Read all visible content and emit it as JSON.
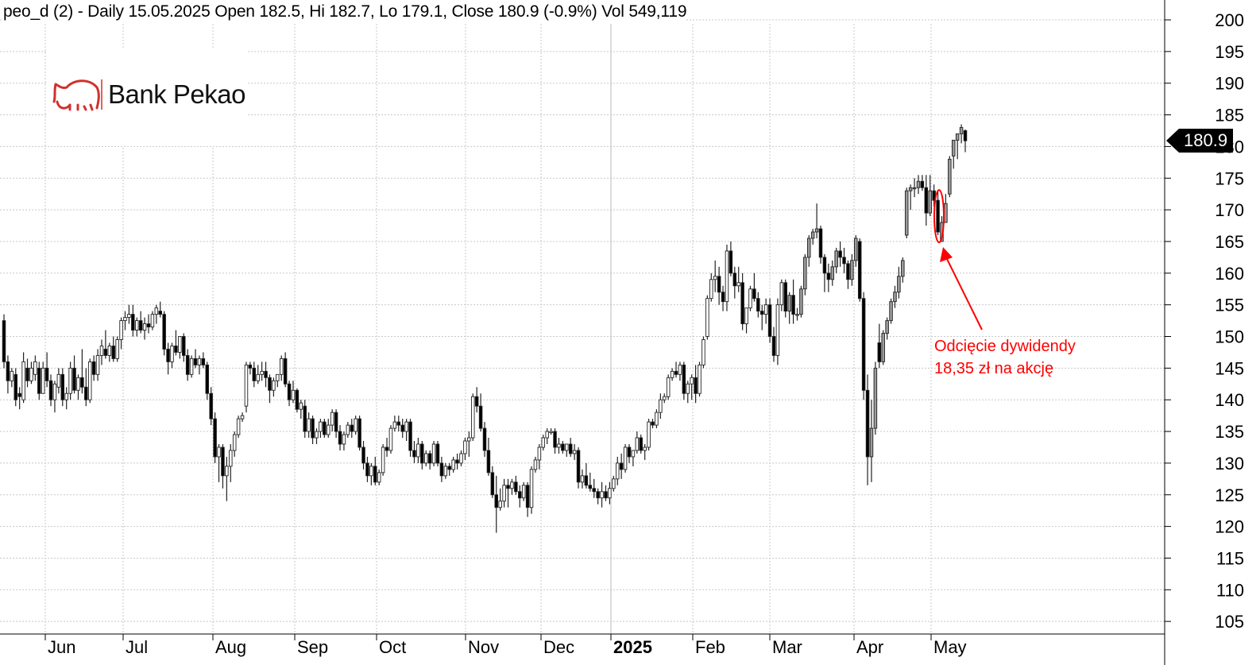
{
  "header": {
    "title": "peo_d (2) - Daily 15.05.2025 Open 182.5, Hi 182.7, Lo 179.1, Close 180.9 (-0.9%) Vol 549,119"
  },
  "logo": {
    "text": "Bank Pekao",
    "color": "#d0312d"
  },
  "annotation": {
    "line1": "Odcięcie dywidendy",
    "line2": "18,35 zł na akcję",
    "color": "#ff0000"
  },
  "last_price": {
    "label": "180.9"
  },
  "chart_data": {
    "type": "candlestick",
    "ticker": "peo_d (2)",
    "interval": "Daily",
    "ylim": [
      102,
      202
    ],
    "y_ticks": [
      105,
      110,
      115,
      120,
      125,
      130,
      135,
      140,
      145,
      150,
      155,
      160,
      165,
      170,
      175,
      180,
      185,
      190,
      195,
      200
    ],
    "x_tick_labels": [
      "Jun",
      "Jul",
      "Aug",
      "Sep",
      "Oct",
      "Nov",
      "Dec",
      "2025",
      "Feb",
      "Mar",
      "Apr",
      "May"
    ],
    "grid": true,
    "colors": {
      "up": "#ffffff",
      "down": "#000000",
      "outline": "#222222",
      "grid": "#c8c8c8"
    },
    "candles_ohlc": [
      [
        152.5,
        153.5,
        145,
        146
      ],
      [
        146,
        147,
        141,
        143
      ],
      [
        143,
        145,
        142,
        144.5
      ],
      [
        144,
        145,
        139,
        140
      ],
      [
        141,
        142,
        138.5,
        140.5
      ],
      [
        140,
        147.5,
        139.5,
        146
      ],
      [
        145,
        146.5,
        142,
        143
      ],
      [
        143,
        146,
        142.5,
        145
      ],
      [
        144,
        147,
        143,
        146
      ],
      [
        145,
        146,
        140,
        141
      ],
      [
        141,
        146,
        141,
        145
      ],
      [
        145,
        147.5,
        142,
        143
      ],
      [
        143,
        144,
        139,
        140
      ],
      [
        140,
        143,
        138,
        142.5
      ],
      [
        142,
        145,
        141,
        144
      ],
      [
        144,
        145,
        139,
        140
      ],
      [
        140,
        142,
        138.5,
        141
      ],
      [
        141,
        146,
        140,
        145
      ],
      [
        145,
        147,
        141,
        141.5
      ],
      [
        141.5,
        144,
        140,
        143.5
      ],
      [
        143.5,
        148,
        141,
        142
      ],
      [
        142,
        145,
        139,
        140
      ],
      [
        140,
        146.5,
        139.5,
        146
      ],
      [
        146,
        147,
        143,
        144
      ],
      [
        144,
        148,
        143,
        147
      ],
      [
        147,
        149.5,
        145.5,
        148.5
      ],
      [
        148,
        151,
        146.5,
        147
      ],
      [
        147,
        149,
        146,
        148.5
      ],
      [
        148.5,
        150,
        146,
        146.5
      ],
      [
        146.5,
        150,
        146,
        149.5
      ],
      [
        149.5,
        153,
        148,
        152.5
      ],
      [
        152.5,
        154,
        151,
        153
      ],
      [
        153,
        155,
        152,
        153.5
      ],
      [
        153.5,
        155,
        150,
        151
      ],
      [
        151,
        153,
        150,
        152.5
      ],
      [
        152.5,
        154,
        150.5,
        151
      ],
      [
        151,
        153,
        149.5,
        152
      ],
      [
        152,
        153.5,
        150.5,
        151.5
      ],
      [
        151.5,
        154,
        151,
        153.5
      ],
      [
        153.5,
        155,
        152,
        154.5
      ],
      [
        154,
        155.5,
        153,
        153.5
      ],
      [
        153.5,
        154,
        147,
        148
      ],
      [
        148,
        149,
        144,
        146
      ],
      [
        146,
        149,
        145,
        148.5
      ],
      [
        148.5,
        151,
        147,
        147.5
      ],
      [
        147.5,
        150,
        146.5,
        150
      ],
      [
        150,
        150.5,
        146,
        147
      ],
      [
        147,
        148,
        143,
        144
      ],
      [
        144,
        147,
        143.5,
        146.5
      ],
      [
        146.5,
        148,
        145,
        145.5
      ],
      [
        145.5,
        147,
        144,
        146.5
      ],
      [
        146.5,
        147.5,
        145,
        145.5
      ],
      [
        145.5,
        146,
        140,
        141
      ],
      [
        141,
        142,
        136,
        137
      ],
      [
        137,
        138,
        130,
        131
      ],
      [
        131,
        133,
        127,
        132.5
      ],
      [
        132.5,
        133,
        126,
        128
      ],
      [
        128,
        131,
        124,
        129.5
      ],
      [
        129.5,
        133,
        127,
        132
      ],
      [
        132,
        135,
        131,
        134.5
      ],
      [
        134.5,
        137.5,
        134,
        137
      ],
      [
        137,
        138,
        136.5,
        137.5
      ],
      [
        139,
        146,
        138,
        145.5
      ],
      [
        145.5,
        146,
        144,
        145
      ],
      [
        145,
        146,
        142,
        143
      ],
      [
        143,
        145.5,
        142.5,
        144
      ],
      [
        144,
        146,
        143,
        144.5
      ],
      [
        144.5,
        146,
        142,
        143.5
      ],
      [
        143.5,
        144,
        139.5,
        141.5
      ],
      [
        141.5,
        143.5,
        140.5,
        143
      ],
      [
        143,
        144,
        142,
        144
      ],
      [
        144,
        147,
        143,
        146.5
      ],
      [
        146.5,
        147.5,
        142,
        142.5
      ],
      [
        142.5,
        143,
        139,
        140
      ],
      [
        140,
        143,
        139.5,
        141.5
      ],
      [
        141.5,
        141.8,
        138,
        138.5
      ],
      [
        138.5,
        140,
        137,
        139.5
      ],
      [
        139,
        140,
        134,
        135
      ],
      [
        135,
        138,
        134,
        137
      ],
      [
        137,
        137.5,
        133,
        134
      ],
      [
        134,
        135.5,
        133,
        135
      ],
      [
        135,
        137,
        134,
        136.5
      ],
      [
        136.5,
        137,
        134,
        134.5
      ],
      [
        134.5,
        137,
        134,
        136
      ],
      [
        136,
        138.5,
        135,
        138
      ],
      [
        138,
        138.5,
        134,
        135
      ],
      [
        135,
        136,
        132,
        133
      ],
      [
        133,
        135,
        132,
        134.5
      ],
      [
        134.5,
        136.5,
        134,
        136
      ],
      [
        136,
        137,
        134,
        135
      ],
      [
        135,
        137.5,
        134.5,
        137
      ],
      [
        137,
        137.5,
        132,
        132.5
      ],
      [
        132.5,
        133.5,
        129,
        130
      ],
      [
        130,
        131,
        127,
        128
      ],
      [
        128,
        130,
        126.5,
        129.5
      ],
      [
        129.5,
        131,
        126.5,
        127
      ],
      [
        127,
        129,
        126.5,
        128.5
      ],
      [
        128.5,
        133,
        128,
        132.5
      ],
      [
        132.5,
        134,
        131,
        132
      ],
      [
        132,
        136,
        131.5,
        135.5
      ],
      [
        135.5,
        137.5,
        135,
        136.5
      ],
      [
        136.5,
        137.5,
        135,
        136
      ],
      [
        136,
        137,
        134,
        135
      ],
      [
        135,
        137,
        133.5,
        136.5
      ],
      [
        136.5,
        137,
        131,
        132
      ],
      [
        132,
        133.5,
        130,
        131
      ],
      [
        131,
        134,
        130,
        133
      ],
      [
        133,
        133.5,
        129,
        130
      ],
      [
        130,
        132,
        129.5,
        131.5
      ],
      [
        131.5,
        132,
        129,
        130
      ],
      [
        130,
        133.5,
        129.5,
        133
      ],
      [
        133,
        133.5,
        129.5,
        130
      ],
      [
        130,
        131,
        127,
        128
      ],
      [
        128,
        130,
        127.5,
        129.5
      ],
      [
        129.5,
        130,
        128,
        129
      ],
      [
        129,
        131,
        128.5,
        130.5
      ],
      [
        130.5,
        131.5,
        129,
        130
      ],
      [
        130,
        132,
        129.5,
        131.5
      ],
      [
        131.5,
        134,
        130.5,
        133.5
      ],
      [
        133.5,
        135,
        131,
        134
      ],
      [
        134,
        141,
        133.5,
        140.5
      ],
      [
        140.5,
        142,
        138,
        139
      ],
      [
        139,
        141,
        135,
        135.5
      ],
      [
        135.5,
        136.5,
        131,
        132
      ],
      [
        132,
        134,
        128,
        128.5
      ],
      [
        128.5,
        129.5,
        124.5,
        125
      ],
      [
        125,
        128,
        119,
        123
      ],
      [
        123,
        126,
        122.5,
        124
      ],
      [
        124,
        127.5,
        123,
        126.5
      ],
      [
        126.5,
        127.5,
        123,
        126
      ],
      [
        126,
        127.5,
        125,
        127
      ],
      [
        127,
        128,
        125,
        125.5
      ],
      [
        125.5,
        126.5,
        123,
        124.5
      ],
      [
        124.5,
        127,
        124,
        126.5
      ],
      [
        126.5,
        127,
        121.5,
        123
      ],
      [
        123,
        129.5,
        122,
        129
      ],
      [
        129,
        131,
        128.5,
        130.5
      ],
      [
        130.5,
        133,
        129,
        132.5
      ],
      [
        132.5,
        134.5,
        132,
        134
      ],
      [
        134,
        135.5,
        133,
        135
      ],
      [
        135,
        135.5,
        134.5,
        135
      ],
      [
        135,
        135.5,
        131.5,
        132.5
      ],
      [
        132.5,
        134,
        131.5,
        133
      ],
      [
        133,
        133.5,
        131.5,
        132
      ],
      [
        132,
        133,
        131,
        133
      ],
      [
        133,
        134,
        131,
        131.5
      ],
      [
        131.5,
        133,
        130.5,
        132
      ],
      [
        132,
        132.5,
        126,
        127
      ],
      [
        127,
        129,
        126,
        128
      ],
      [
        128,
        130,
        126,
        126.5
      ],
      [
        126.5,
        128.5,
        125.5,
        126
      ],
      [
        126,
        127.5,
        124.5,
        125.5
      ],
      [
        125.5,
        126,
        123.5,
        124.5
      ],
      [
        124.5,
        127,
        123,
        125.5
      ],
      [
        125.5,
        126.5,
        124,
        124.5
      ],
      [
        124.5,
        127,
        123.5,
        126
      ],
      [
        126,
        128,
        125.5,
        127.5
      ],
      [
        127.5,
        131,
        126.5,
        130
      ],
      [
        130,
        131.5,
        127.5,
        129
      ],
      [
        129,
        133,
        128.5,
        132.5
      ],
      [
        132.5,
        133,
        130,
        131
      ],
      [
        131,
        132,
        129.5,
        132
      ],
      [
        132,
        135,
        131.5,
        134
      ],
      [
        134,
        134.5,
        131.5,
        132
      ],
      [
        132,
        133,
        130.5,
        132.5
      ],
      [
        132.5,
        137,
        132,
        136.5
      ],
      [
        136.5,
        137,
        135.5,
        136
      ],
      [
        136,
        138.5,
        135.5,
        138
      ],
      [
        138,
        141,
        137,
        140
      ],
      [
        140,
        141,
        139.5,
        140.5
      ],
      [
        140.5,
        144,
        140,
        143.5
      ],
      [
        143.5,
        145,
        143,
        144.5
      ],
      [
        144.5,
        146,
        143.5,
        144
      ],
      [
        144,
        146,
        143,
        145.5
      ],
      [
        145.5,
        146,
        140,
        141
      ],
      [
        141,
        143,
        139.5,
        142.5
      ],
      [
        142.5,
        144,
        140,
        143.5
      ],
      [
        143.5,
        145.5,
        139.5,
        141
      ],
      [
        141,
        146,
        140.5,
        145.5
      ],
      [
        145.5,
        150,
        145,
        149.5
      ],
      [
        150,
        156.5,
        149.5,
        156
      ],
      [
        156,
        160,
        155.5,
        159
      ],
      [
        159,
        162,
        157,
        159.5
      ],
      [
        159.5,
        161,
        155,
        157
      ],
      [
        157,
        158,
        154,
        155.5
      ],
      [
        155.5,
        164.5,
        154,
        163.5
      ],
      [
        163.5,
        165,
        159.5,
        160
      ],
      [
        160,
        161,
        156,
        158
      ],
      [
        158,
        161,
        157,
        158.5
      ],
      [
        158.5,
        160,
        151,
        152
      ],
      [
        152,
        154,
        150.5,
        154.5
      ],
      [
        154.5,
        158,
        154,
        157.5
      ],
      [
        157.5,
        160,
        155.5,
        156
      ],
      [
        156,
        157,
        153,
        154
      ],
      [
        154,
        155,
        151,
        153.5
      ],
      [
        153.5,
        156,
        152,
        155
      ],
      [
        155,
        156,
        149,
        150
      ],
      [
        150,
        151.5,
        146,
        147
      ],
      [
        147,
        156,
        145.5,
        155
      ],
      [
        155,
        159,
        154,
        158.5
      ],
      [
        158.5,
        159,
        153,
        154
      ],
      [
        154,
        157,
        152,
        156.5
      ],
      [
        156.5,
        159,
        152,
        153.5
      ],
      [
        153.5,
        154.5,
        152.5,
        153.5
      ],
      [
        153.5,
        158,
        153,
        157.5
      ],
      [
        157.5,
        163,
        156.5,
        162.5
      ],
      [
        162.5,
        166,
        161,
        165.5
      ],
      [
        165.5,
        167,
        164.5,
        166.5
      ],
      [
        166.5,
        171,
        165.5,
        167
      ],
      [
        167,
        167.5,
        161.5,
        162.5
      ],
      [
        162.5,
        163,
        157,
        160
      ],
      [
        160,
        161.5,
        157,
        159
      ],
      [
        159,
        162,
        158,
        161
      ],
      [
        161,
        164,
        160,
        163.5
      ],
      [
        163.5,
        165,
        161,
        162.5
      ],
      [
        162.5,
        164,
        160,
        161.5
      ],
      [
        161.5,
        162,
        157.5,
        159
      ],
      [
        159,
        163,
        158,
        162
      ],
      [
        162,
        166,
        161,
        165.5
      ],
      [
        165,
        165.5,
        155.5,
        156
      ],
      [
        156,
        157,
        140,
        141.5
      ],
      [
        141.5,
        144,
        126.5,
        131
      ],
      [
        131,
        140,
        127,
        135.5
      ],
      [
        135.5,
        146,
        134.5,
        145
      ],
      [
        149,
        152,
        145,
        146
      ],
      [
        146,
        151,
        145.5,
        150.5
      ],
      [
        150.5,
        153,
        149.5,
        152.5
      ],
      [
        152.5,
        156,
        152,
        155.5
      ],
      [
        155.5,
        158,
        154.5,
        157
      ],
      [
        157,
        161,
        156,
        159.5
      ],
      [
        159.5,
        162.5,
        158.5,
        162
      ],
      [
        166,
        173.5,
        165.5,
        173
      ],
      [
        173,
        174,
        170,
        173.5
      ],
      [
        173.5,
        175,
        172,
        173.5
      ],
      [
        173.5,
        175.5,
        172.5,
        174.5
      ],
      [
        174.5,
        175.5,
        173,
        173.5
      ],
      [
        173.5,
        175.5,
        167.5,
        169.5
      ],
      [
        169.5,
        175.5,
        169,
        173
      ],
      [
        173,
        174,
        170.5,
        171.5
      ],
      [
        171.5,
        173,
        166,
        166.5
      ],
      [
        165,
        169,
        165,
        168
      ],
      [
        168,
        172.5,
        168,
        171
      ],
      [
        172.5,
        178.5,
        172,
        178
      ],
      [
        178.5,
        181,
        176.5,
        181
      ],
      [
        181,
        182,
        178,
        182
      ],
      [
        182,
        183.5,
        180.5,
        183
      ],
      [
        182.5,
        182.7,
        179.1,
        180.9
      ]
    ]
  }
}
